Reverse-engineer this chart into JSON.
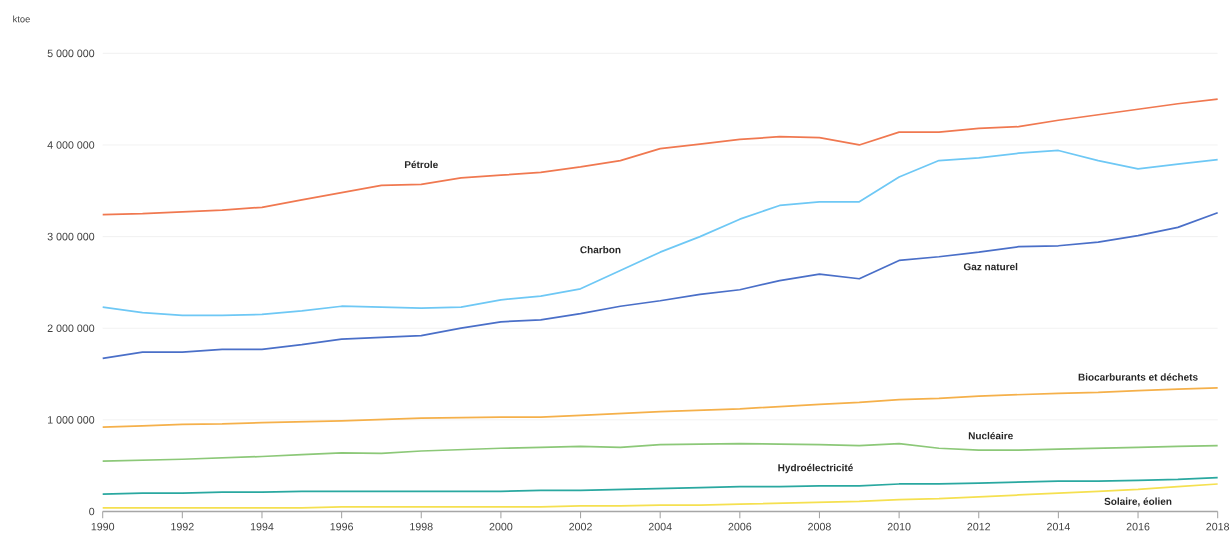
{
  "chart_data": {
    "type": "line",
    "ylabel": "ktoe",
    "x": [
      1990,
      1991,
      1992,
      1993,
      1994,
      1995,
      1996,
      1997,
      1998,
      1999,
      2000,
      2001,
      2002,
      2003,
      2004,
      2005,
      2006,
      2007,
      2008,
      2009,
      2010,
      2011,
      2012,
      2013,
      2014,
      2015,
      2016,
      2017,
      2018
    ],
    "series": [
      {
        "name": "Pétrole",
        "color": "#f07850",
        "values": [
          3240000,
          3250000,
          3270000,
          3290000,
          3320000,
          3400000,
          3480000,
          3560000,
          3570000,
          3640000,
          3670000,
          3700000,
          3760000,
          3830000,
          3960000,
          4010000,
          4060000,
          4090000,
          4080000,
          4000000,
          4140000,
          4140000,
          4180000,
          4200000,
          4270000,
          4330000,
          4390000,
          4450000,
          4500000
        ]
      },
      {
        "name": "Charbon",
        "color": "#6ec8f5",
        "values": [
          2230000,
          2170000,
          2140000,
          2140000,
          2150000,
          2190000,
          2240000,
          2230000,
          2220000,
          2230000,
          2310000,
          2350000,
          2430000,
          2630000,
          2830000,
          3000000,
          3190000,
          3340000,
          3380000,
          3380000,
          3650000,
          3830000,
          3860000,
          3910000,
          3940000,
          3830000,
          3740000,
          3790000,
          3840000
        ]
      },
      {
        "name": "Gaz naturel",
        "color": "#4a6fc8",
        "values": [
          1670000,
          1740000,
          1740000,
          1770000,
          1770000,
          1820000,
          1880000,
          1900000,
          1920000,
          2000000,
          2070000,
          2090000,
          2160000,
          2240000,
          2300000,
          2370000,
          2420000,
          2520000,
          2590000,
          2540000,
          2740000,
          2780000,
          2830000,
          2890000,
          2900000,
          2940000,
          3010000,
          3100000,
          3260000
        ]
      },
      {
        "name": "Biocarburants et déchets",
        "color": "#f5b04a",
        "values": [
          920000,
          935000,
          950000,
          955000,
          970000,
          980000,
          990000,
          1005000,
          1020000,
          1025000,
          1030000,
          1030000,
          1050000,
          1070000,
          1090000,
          1105000,
          1120000,
          1145000,
          1170000,
          1190000,
          1220000,
          1235000,
          1260000,
          1275000,
          1290000,
          1300000,
          1320000,
          1335000,
          1350000
        ]
      },
      {
        "name": "Nucléaire",
        "color": "#8cc878",
        "values": [
          550000,
          560000,
          570000,
          585000,
          600000,
          620000,
          640000,
          635000,
          660000,
          675000,
          690000,
          700000,
          710000,
          700000,
          730000,
          735000,
          740000,
          735000,
          730000,
          720000,
          740000,
          690000,
          670000,
          670000,
          680000,
          690000,
          700000,
          710000,
          720000
        ]
      },
      {
        "name": "Hydroélectricité",
        "color": "#2aa8a0",
        "values": [
          190000,
          200000,
          200000,
          210000,
          210000,
          220000,
          220000,
          220000,
          220000,
          220000,
          220000,
          230000,
          230000,
          240000,
          250000,
          260000,
          270000,
          270000,
          280000,
          280000,
          300000,
          300000,
          310000,
          320000,
          330000,
          330000,
          340000,
          350000,
          370000
        ]
      },
      {
        "name": "Solaire, éolien",
        "color": "#f5e050",
        "values": [
          40000,
          40000,
          40000,
          40000,
          40000,
          40000,
          50000,
          50000,
          50000,
          50000,
          50000,
          50000,
          60000,
          60000,
          70000,
          70000,
          80000,
          90000,
          100000,
          110000,
          130000,
          140000,
          160000,
          180000,
          200000,
          220000,
          240000,
          270000,
          300000
        ]
      }
    ],
    "xlim": [
      1990,
      2018
    ],
    "xticks": [
      1990,
      1992,
      1994,
      1996,
      1998,
      2000,
      2002,
      2004,
      2006,
      2008,
      2010,
      2012,
      2014,
      2016,
      2018
    ],
    "ylim": [
      0,
      5000000
    ],
    "yticks": [
      {
        "value": 0,
        "label": "0"
      },
      {
        "value": 1000000,
        "label": "1 000 000"
      },
      {
        "value": 2000000,
        "label": "2 000 000"
      },
      {
        "value": 3000000,
        "label": "3 000 000"
      },
      {
        "value": 4000000,
        "label": "4 000 000"
      },
      {
        "value": 5000000,
        "label": "5 000 000"
      }
    ],
    "grid": "y",
    "legend": false,
    "marker": "none",
    "line_style": "solid"
  }
}
